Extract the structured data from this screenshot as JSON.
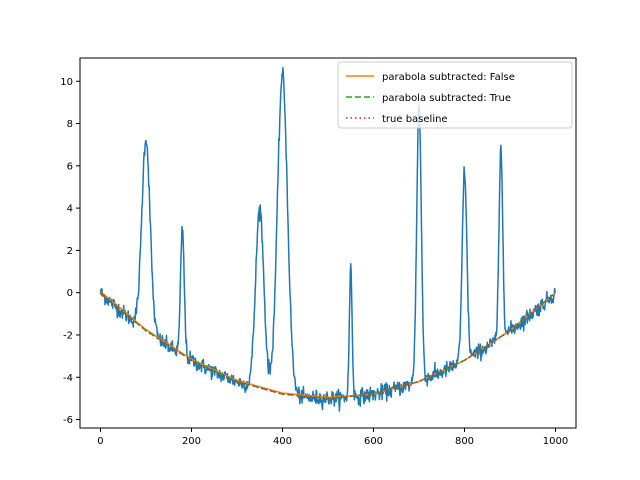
{
  "chart_data": {
    "type": "line",
    "title": "",
    "xlabel": "",
    "ylabel": "",
    "xlim": [
      -45,
      1045
    ],
    "ylim": [
      -6.4,
      11.1
    ],
    "xticks": [
      0,
      200,
      400,
      600,
      800,
      1000
    ],
    "yticks": [
      -6,
      -4,
      -2,
      0,
      2,
      4,
      6,
      8,
      10
    ],
    "grid": false,
    "legend_position": "top-right",
    "colors": {
      "signal": "#1f77b4",
      "parabola_false": "#ff7f0e",
      "parabola_true": "#2ca02c",
      "true_baseline": "#d62728"
    },
    "signal": {
      "baseline_curve": "parabola through (0, 0), (500, -5), (1000, 0)",
      "noise_level": 0.18,
      "peaks": [
        {
          "x": 100,
          "height": 7.3
        },
        {
          "x": 180,
          "height": 3.0
        },
        {
          "x": 350,
          "height": 4.0
        },
        {
          "x": 400,
          "height": 10.3
        },
        {
          "x": 550,
          "height": 1.2
        },
        {
          "x": 700,
          "height": 8.9
        },
        {
          "x": 800,
          "height": 5.8
        },
        {
          "x": 880,
          "height": 6.8
        }
      ]
    },
    "series": [
      {
        "name": "parabola subtracted: False",
        "style": "solid",
        "x": [
          0,
          100,
          200,
          300,
          400,
          500,
          600,
          700,
          800,
          900,
          1000
        ],
        "values": [
          0.05,
          -1.75,
          -3.15,
          -4.15,
          -4.75,
          -4.95,
          -4.8,
          -4.2,
          -3.2,
          -1.8,
          0.0
        ]
      },
      {
        "name": "parabola subtracted: True",
        "style": "dashed",
        "x": [
          0,
          100,
          200,
          300,
          400,
          500,
          600,
          700,
          800,
          900,
          1000
        ],
        "values": [
          0.0,
          -1.8,
          -3.2,
          -4.2,
          -4.8,
          -5.0,
          -4.8,
          -4.2,
          -3.2,
          -1.8,
          0.0
        ]
      },
      {
        "name": "true baseline",
        "style": "dotted",
        "x": [
          0,
          100,
          200,
          300,
          400,
          500,
          600,
          700,
          800,
          900,
          1000
        ],
        "values": [
          0.0,
          -1.8,
          -3.2,
          -4.2,
          -4.8,
          -5.0,
          -4.8,
          -4.2,
          -3.2,
          -1.8,
          0.0
        ]
      }
    ]
  }
}
